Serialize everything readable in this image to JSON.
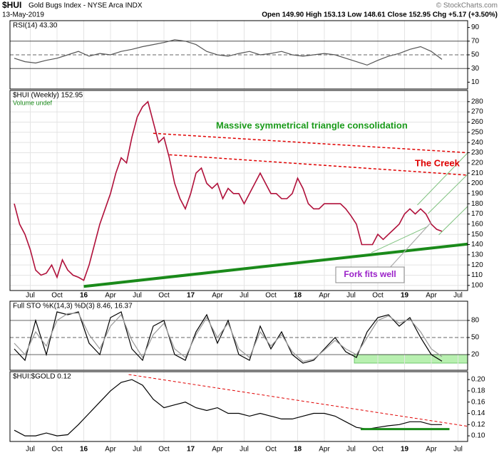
{
  "header": {
    "symbol": "$HUI",
    "name": "Gold Bugs Index - NYSE Arca INDX",
    "date": "13-May-2019",
    "quote": "Open 149.90  High 153.13  Low 148.61  Close 152.95  Chg +5.17 (+3.50%)",
    "copyright": "© StockCharts.com"
  },
  "chart_data": [
    {
      "type": "line",
      "title": "RSI(14) 43.30",
      "xlim": [
        2015.31,
        2019.59
      ],
      "ylim": [
        0,
        100
      ],
      "yticks": [
        90,
        70,
        50,
        30,
        10
      ],
      "reference_lines": [
        {
          "value": 70,
          "dashed": false
        },
        {
          "value": 50,
          "dashed": true
        },
        {
          "value": 30,
          "dashed": false
        }
      ],
      "x": [
        2015.35,
        2015.45,
        2015.55,
        2015.65,
        2015.75,
        2015.85,
        2015.95,
        2016.05,
        2016.15,
        2016.25,
        2016.35,
        2016.45,
        2016.55,
        2016.65,
        2016.75,
        2016.85,
        2016.95,
        2017.05,
        2017.15,
        2017.25,
        2017.35,
        2017.45,
        2017.55,
        2017.65,
        2017.75,
        2017.85,
        2017.95,
        2018.05,
        2018.15,
        2018.25,
        2018.35,
        2018.45,
        2018.55,
        2018.65,
        2018.75,
        2018.85,
        2018.95,
        2019.05,
        2019.15,
        2019.25,
        2019.35
      ],
      "series": [
        {
          "color": "#555555",
          "values": [
            45,
            40,
            38,
            42,
            45,
            50,
            55,
            48,
            52,
            50,
            55,
            58,
            62,
            65,
            68,
            72,
            70,
            65,
            55,
            50,
            48,
            52,
            55,
            50,
            52,
            55,
            50,
            48,
            50,
            52,
            50,
            45,
            40,
            35,
            42,
            48,
            52,
            58,
            62,
            55,
            43.3
          ]
        }
      ]
    },
    {
      "type": "line",
      "title": "$HUI (Weekly) 152.95",
      "subtitle": "Volume undef",
      "xlim": [
        2015.31,
        2019.59
      ],
      "ylim": [
        95,
        291
      ],
      "grid": true,
      "yticks": [
        100,
        110,
        120,
        130,
        140,
        150,
        160,
        170,
        180,
        190,
        200,
        210,
        220,
        230,
        240,
        250,
        260,
        270,
        280
      ],
      "xticks": [
        {
          "value": 2015.5,
          "label": "Jul"
        },
        {
          "value": 2015.75,
          "label": "Oct"
        },
        {
          "value": 2016,
          "label": "16"
        },
        {
          "value": 2016.25,
          "label": "Apr"
        },
        {
          "value": 2016.5,
          "label": "Jul"
        },
        {
          "value": 2016.75,
          "label": "Oct"
        },
        {
          "value": 2017,
          "label": "17"
        },
        {
          "value": 2017.25,
          "label": "Apr"
        },
        {
          "value": 2017.5,
          "label": "Jul"
        },
        {
          "value": 2017.75,
          "label": "Oct"
        },
        {
          "value": 2018,
          "label": "18"
        },
        {
          "value": 2018.25,
          "label": "Apr"
        },
        {
          "value": 2018.5,
          "label": "Jul"
        },
        {
          "value": 2018.75,
          "label": "Oct"
        },
        {
          "value": 2019,
          "label": "19"
        },
        {
          "value": 2019.25,
          "label": "Apr"
        },
        {
          "value": 2019.5,
          "label": "Jul"
        }
      ],
      "x": [
        2015.35,
        2015.4,
        2015.45,
        2015.5,
        2015.55,
        2015.6,
        2015.65,
        2015.7,
        2015.75,
        2015.8,
        2015.85,
        2015.9,
        2015.95,
        2016,
        2016.05,
        2016.1,
        2016.15,
        2016.2,
        2016.25,
        2016.3,
        2016.35,
        2016.4,
        2016.45,
        2016.5,
        2016.55,
        2016.6,
        2016.65,
        2016.7,
        2016.75,
        2016.8,
        2016.85,
        2016.9,
        2016.95,
        2017,
        2017.05,
        2017.1,
        2017.15,
        2017.2,
        2017.25,
        2017.3,
        2017.35,
        2017.4,
        2017.45,
        2017.5,
        2017.55,
        2017.6,
        2017.65,
        2017.7,
        2017.75,
        2017.8,
        2017.85,
        2017.9,
        2017.95,
        2018,
        2018.05,
        2018.1,
        2018.15,
        2018.2,
        2018.25,
        2018.3,
        2018.35,
        2018.4,
        2018.45,
        2018.5,
        2018.55,
        2018.6,
        2018.65,
        2018.7,
        2018.75,
        2018.8,
        2018.85,
        2018.9,
        2018.95,
        2019,
        2019.05,
        2019.1,
        2019.15,
        2019.2,
        2019.25,
        2019.3,
        2019.35
      ],
      "series": [
        {
          "color": "#b0103a",
          "values": [
            180,
            160,
            150,
            135,
            115,
            110,
            112,
            120,
            108,
            125,
            115,
            110,
            108,
            105,
            120,
            140,
            160,
            175,
            190,
            210,
            225,
            220,
            245,
            265,
            275,
            280,
            260,
            240,
            245,
            225,
            200,
            185,
            175,
            190,
            210,
            215,
            200,
            195,
            200,
            185,
            195,
            190,
            190,
            180,
            190,
            200,
            210,
            200,
            190,
            190,
            185,
            185,
            190,
            205,
            195,
            180,
            175,
            175,
            180,
            180,
            180,
            180,
            175,
            168,
            160,
            140,
            140,
            140,
            150,
            145,
            150,
            155,
            160,
            170,
            175,
            170,
            175,
            170,
            160,
            155,
            152.95
          ]
        }
      ],
      "trendlines": [
        {
          "color": "#1a8a1a",
          "width": 4,
          "dashed": false,
          "points": [
            [
              2016.0,
              99
            ],
            [
              2019.59,
              140.5
            ]
          ]
        },
        {
          "color": "#e00000",
          "width": 1.5,
          "dashed": true,
          "points": [
            [
              2016.65,
              249
            ],
            [
              2019.59,
              230
            ]
          ]
        },
        {
          "color": "#e00000",
          "width": 1.5,
          "dashed": true,
          "points": [
            [
              2016.8,
              228
            ],
            [
              2019.59,
              208
            ]
          ]
        },
        {
          "color": "#7fc27f",
          "width": 1,
          "dashed": false,
          "points": [
            [
              2019.12,
              178.8
            ],
            [
              2019.59,
              229.8
            ]
          ]
        },
        {
          "color": "#7fc27f",
          "width": 1,
          "dashed": false,
          "points": [
            [
              2019.22,
              170.4
            ],
            [
              2019.59,
              208.8
            ]
          ]
        },
        {
          "color": "#7fc27f",
          "width": 1,
          "dashed": false,
          "points": [
            [
              2019.32,
              149.5
            ],
            [
              2019.59,
              177.4
            ]
          ]
        },
        {
          "color": "#7fc27f",
          "width": 1,
          "dashed": false,
          "points": [
            [
              2018.69,
              132.1
            ],
            [
              2019.22,
              157.9
            ]
          ]
        }
      ],
      "annotations": [
        {
          "text": "Massive symmetrical triangle consolidation",
          "color": "#1a9a1a"
        },
        {
          "text": "The Creek",
          "color": "#e00000"
        },
        {
          "text": "Fork fits well",
          "color": "#9a20c8"
        }
      ]
    },
    {
      "type": "line",
      "title": "Full STO %K(14,3) %D(3) 8.46, 16.37",
      "xlim": [
        2015.31,
        2019.59
      ],
      "ylim": [
        -7.5,
        113.75
      ],
      "yticks": [
        80,
        50,
        20
      ],
      "reference_lines": [
        {
          "value": 80,
          "dashed": false
        },
        {
          "value": 50,
          "dashed": true
        },
        {
          "value": 20,
          "dashed": false
        }
      ],
      "highlight": {
        "color": "#b8f0b0",
        "x": [
          2018.53,
          2019.59
        ],
        "y": [
          5,
          20
        ]
      },
      "x": [
        2015.35,
        2015.45,
        2015.55,
        2015.65,
        2015.75,
        2015.85,
        2015.95,
        2016.05,
        2016.15,
        2016.25,
        2016.35,
        2016.45,
        2016.55,
        2016.65,
        2016.75,
        2016.85,
        2016.95,
        2017.05,
        2017.15,
        2017.25,
        2017.35,
        2017.45,
        2017.55,
        2017.65,
        2017.75,
        2017.85,
        2017.95,
        2018.05,
        2018.15,
        2018.25,
        2018.35,
        2018.45,
        2018.55,
        2018.65,
        2018.75,
        2018.85,
        2018.95,
        2019.05,
        2019.15,
        2019.25,
        2019.35
      ],
      "series": [
        {
          "color": "#000000",
          "values": [
            30,
            10,
            80,
            20,
            95,
            90,
            95,
            40,
            20,
            85,
            95,
            30,
            10,
            70,
            80,
            20,
            10,
            60,
            90,
            40,
            80,
            20,
            10,
            70,
            30,
            60,
            20,
            5,
            10,
            30,
            50,
            25,
            15,
            60,
            85,
            90,
            70,
            85,
            50,
            20,
            8.46
          ]
        },
        {
          "color": "#999999",
          "values": [
            40,
            20,
            60,
            35,
            80,
            92,
            93,
            55,
            30,
            70,
            90,
            45,
            15,
            55,
            75,
            30,
            15,
            55,
            85,
            50,
            75,
            30,
            15,
            60,
            35,
            55,
            25,
            8,
            12,
            28,
            45,
            30,
            20,
            50,
            80,
            88,
            75,
            82,
            60,
            30,
            16.37
          ]
        }
      ]
    },
    {
      "type": "line",
      "title": "$HUI:$GOLD 0.12",
      "xlim": [
        2015.31,
        2019.59
      ],
      "ylim": [
        0.09,
        0.214
      ],
      "yticks": [
        {
          "value": 0.2,
          "label": "0.20"
        },
        0.18,
        0.16,
        0.14,
        0.12,
        {
          "value": 0.1,
          "label": "0.10"
        }
      ],
      "xticks": [
        {
          "value": 2015.5,
          "label": "Jul"
        },
        {
          "value": 2015.75,
          "label": "Oct"
        },
        {
          "value": 2016,
          "label": "16"
        },
        {
          "value": 2016.25,
          "label": "Apr"
        },
        {
          "value": 2016.5,
          "label": "Jul"
        },
        {
          "value": 2016.75,
          "label": "Oct"
        },
        {
          "value": 2017,
          "label": "17"
        },
        {
          "value": 2017.25,
          "label": "Apr"
        },
        {
          "value": 2017.5,
          "label": "Jul"
        },
        {
          "value": 2017.75,
          "label": "Oct"
        },
        {
          "value": 2018,
          "label": "18"
        },
        {
          "value": 2018.25,
          "label": "Apr"
        },
        {
          "value": 2018.5,
          "label": "Jul"
        },
        {
          "value": 2018.75,
          "label": "Oct"
        },
        {
          "value": 2019,
          "label": "19"
        },
        {
          "value": 2019.25,
          "label": "Apr"
        },
        {
          "value": 2019.5,
          "label": "Jul"
        }
      ],
      "x": [
        2015.35,
        2015.45,
        2015.55,
        2015.65,
        2015.75,
        2015.85,
        2015.95,
        2016.05,
        2016.15,
        2016.25,
        2016.35,
        2016.45,
        2016.55,
        2016.65,
        2016.75,
        2016.85,
        2016.95,
        2017.05,
        2017.15,
        2017.25,
        2017.35,
        2017.45,
        2017.55,
        2017.65,
        2017.75,
        2017.85,
        2017.95,
        2018.05,
        2018.15,
        2018.25,
        2018.35,
        2018.45,
        2018.55,
        2018.65,
        2018.75,
        2018.85,
        2018.95,
        2019.05,
        2019.15,
        2019.25,
        2019.35
      ],
      "series": [
        {
          "color": "#000000",
          "values": [
            0.11,
            0.1,
            0.1,
            0.105,
            0.1,
            0.102,
            0.12,
            0.14,
            0.16,
            0.18,
            0.195,
            0.2,
            0.19,
            0.165,
            0.15,
            0.155,
            0.16,
            0.15,
            0.145,
            0.15,
            0.14,
            0.14,
            0.135,
            0.14,
            0.135,
            0.13,
            0.13,
            0.135,
            0.14,
            0.14,
            0.135,
            0.125,
            0.115,
            0.112,
            0.115,
            0.118,
            0.12,
            0.125,
            0.125,
            0.12,
            0.12
          ]
        }
      ],
      "trendlines": [
        {
          "color": "#e00000",
          "width": 1,
          "dashed": true,
          "points": [
            [
              2016.42,
              0.209
            ],
            [
              2019.59,
              0.117
            ]
          ]
        },
        {
          "color": "#1a8a1a",
          "width": 3,
          "dashed": false,
          "points": [
            [
              2018.59,
              0.112
            ],
            [
              2019.42,
              0.112
            ]
          ]
        }
      ]
    }
  ]
}
